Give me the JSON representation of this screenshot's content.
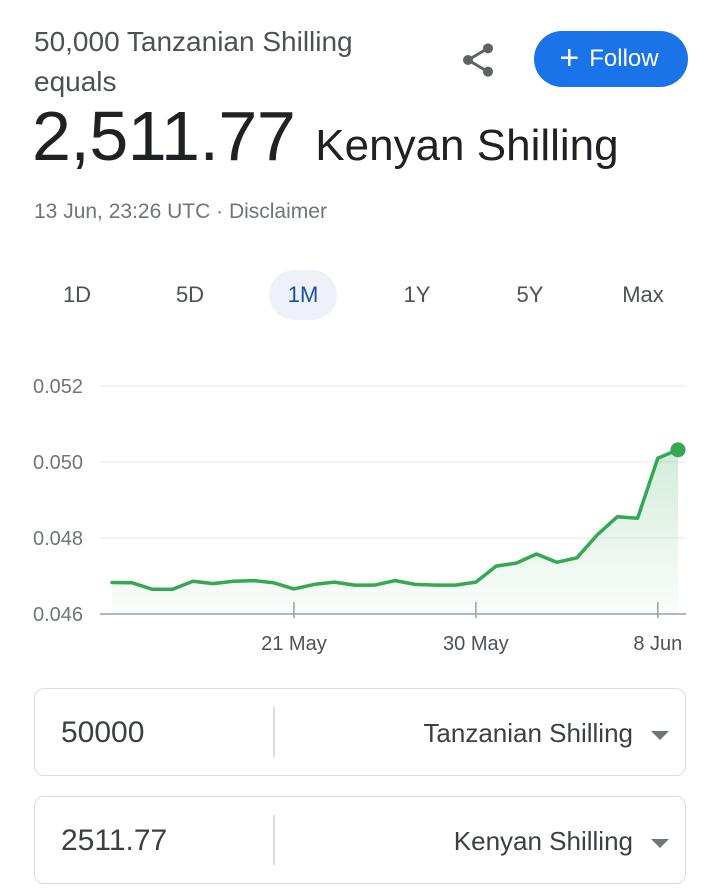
{
  "header": {
    "equals_line": "50,000 Tanzanian Shilling equals",
    "result_value": "2,511.77",
    "result_currency": "Kenyan Shilling",
    "timestamp": "13 Jun, 23:26 UTC",
    "separator": " · ",
    "disclaimer": "Disclaimer"
  },
  "actions": {
    "share_icon": "share-icon",
    "follow_label": "Follow",
    "follow_icon": "+",
    "follow_color": "#1a73e8"
  },
  "tabs": [
    {
      "label": "1D",
      "active": false
    },
    {
      "label": "5D",
      "active": false
    },
    {
      "label": "1M",
      "active": true
    },
    {
      "label": "1Y",
      "active": false
    },
    {
      "label": "5Y",
      "active": false
    },
    {
      "label": "Max",
      "active": false
    }
  ],
  "chart_data": {
    "type": "line",
    "y_ticks": [
      "0.052",
      "0.050",
      "0.048",
      "0.046"
    ],
    "y_tick_values": [
      0.052,
      0.05,
      0.048,
      0.046
    ],
    "x_ticks": [
      "21 May",
      "30 May",
      "8 Jun"
    ],
    "x_tick_indices": [
      9,
      18,
      27
    ],
    "ylim": [
      0.046,
      0.052
    ],
    "line_color": "#34a853",
    "grid": true,
    "series": [
      {
        "values": [
          0.04683,
          0.04682,
          0.04665,
          0.04665,
          0.04686,
          0.0468,
          0.04686,
          0.04688,
          0.04682,
          0.04666,
          0.04678,
          0.04684,
          0.04676,
          0.04676,
          0.04688,
          0.04678,
          0.04676,
          0.04676,
          0.04684,
          0.04726,
          0.04734,
          0.04758,
          0.04736,
          0.04748,
          0.04808,
          0.04856,
          0.04852,
          0.0501,
          0.05032
        ]
      }
    ]
  },
  "converter": {
    "from": {
      "amount": "50000",
      "currency": "Tanzanian Shilling"
    },
    "to": {
      "amount": "2511.77",
      "currency": "Kenyan Shilling"
    }
  }
}
